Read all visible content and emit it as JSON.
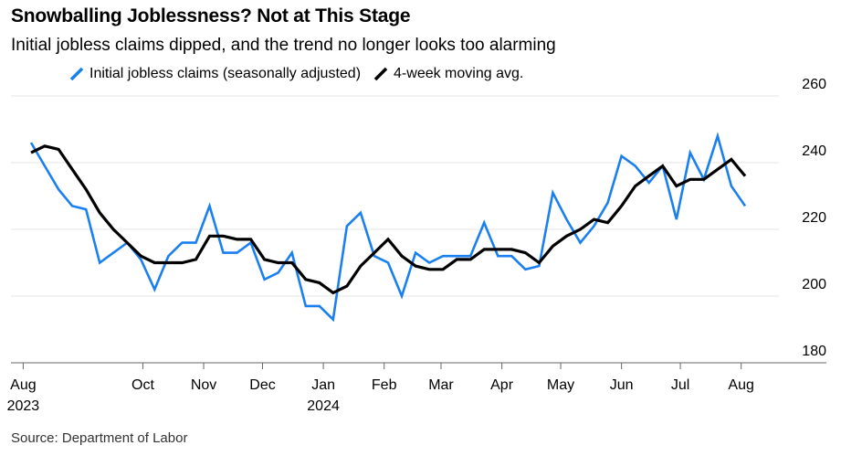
{
  "title": "Snowballing Joblessness? Not at This Stage",
  "subtitle": "Initial jobless claims dipped, and the trend no longer looks too alarming",
  "source": "Source: Department of Labor",
  "colors": {
    "claims": "#1a7ff0",
    "avg": "#000000",
    "grid": "#e6e6e6",
    "axis": "#666666"
  },
  "chart_data": {
    "type": "line",
    "title": "Snowballing Joblessness? Not at This Stage",
    "subtitle": "Initial jobless claims dipped, and the trend no longer looks too alarming",
    "ylim": [
      180,
      260
    ],
    "y_ticks": [
      180,
      200,
      220,
      240,
      260
    ],
    "y_axis_side": "right",
    "grid": true,
    "legend_position": "top",
    "x_start": "2023-08-05",
    "x_end": "2024-08-10",
    "x_ticks": [
      {
        "date": "2023-08-01",
        "label": "Aug",
        "sub": "2023"
      },
      {
        "date": "2023-10-01",
        "label": "Oct",
        "sub": ""
      },
      {
        "date": "2023-11-01",
        "label": "Nov",
        "sub": ""
      },
      {
        "date": "2023-12-01",
        "label": "Dec",
        "sub": ""
      },
      {
        "date": "2024-01-01",
        "label": "Jan",
        "sub": "2024"
      },
      {
        "date": "2024-02-01",
        "label": "Feb",
        "sub": ""
      },
      {
        "date": "2024-03-01",
        "label": "Mar",
        "sub": ""
      },
      {
        "date": "2024-04-01",
        "label": "Apr",
        "sub": ""
      },
      {
        "date": "2024-05-01",
        "label": "May",
        "sub": ""
      },
      {
        "date": "2024-06-01",
        "label": "Jun",
        "sub": ""
      },
      {
        "date": "2024-07-01",
        "label": "Jul",
        "sub": ""
      },
      {
        "date": "2024-08-01",
        "label": "Aug",
        "sub": ""
      }
    ],
    "series": [
      {
        "name": "Initial jobless claims (seasonally adjusted)",
        "color": "#1a7ff0",
        "points": [
          [
            "2023-08-05",
            246
          ],
          [
            "2023-08-12",
            239
          ],
          [
            "2023-08-19",
            232
          ],
          [
            "2023-08-26",
            227
          ],
          [
            "2023-09-02",
            226
          ],
          [
            "2023-09-09",
            210
          ],
          [
            "2023-09-16",
            213
          ],
          [
            "2023-09-23",
            216
          ],
          [
            "2023-09-30",
            211
          ],
          [
            "2023-10-07",
            202
          ],
          [
            "2023-10-14",
            212
          ],
          [
            "2023-10-21",
            216
          ],
          [
            "2023-10-28",
            216
          ],
          [
            "2023-11-04",
            227
          ],
          [
            "2023-11-11",
            213
          ],
          [
            "2023-11-18",
            213
          ],
          [
            "2023-11-25",
            216
          ],
          [
            "2023-12-02",
            205
          ],
          [
            "2023-12-09",
            207
          ],
          [
            "2023-12-16",
            213
          ],
          [
            "2023-12-23",
            197
          ],
          [
            "2023-12-30",
            197
          ],
          [
            "2024-01-06",
            193
          ],
          [
            "2024-01-13",
            221
          ],
          [
            "2024-01-20",
            225
          ],
          [
            "2024-01-27",
            212
          ],
          [
            "2024-02-03",
            210
          ],
          [
            "2024-02-10",
            200
          ],
          [
            "2024-02-17",
            213
          ],
          [
            "2024-02-24",
            210
          ],
          [
            "2024-03-02",
            212
          ],
          [
            "2024-03-09",
            212
          ],
          [
            "2024-03-16",
            212
          ],
          [
            "2024-03-23",
            222
          ],
          [
            "2024-03-30",
            212
          ],
          [
            "2024-04-06",
            212
          ],
          [
            "2024-04-13",
            208
          ],
          [
            "2024-04-20",
            209
          ],
          [
            "2024-04-27",
            231
          ],
          [
            "2024-05-04",
            223
          ],
          [
            "2024-05-11",
            216
          ],
          [
            "2024-05-18",
            221
          ],
          [
            "2024-05-25",
            228
          ],
          [
            "2024-06-01",
            242
          ],
          [
            "2024-06-08",
            239
          ],
          [
            "2024-06-15",
            234
          ],
          [
            "2024-06-22",
            239
          ],
          [
            "2024-06-29",
            223
          ],
          [
            "2024-07-06",
            243
          ],
          [
            "2024-07-13",
            235
          ],
          [
            "2024-07-20",
            248
          ],
          [
            "2024-07-27",
            233
          ],
          [
            "2024-08-03",
            227
          ]
        ]
      },
      {
        "name": "4-week moving avg.",
        "color": "#000000",
        "points": [
          [
            "2023-08-05",
            243
          ],
          [
            "2023-08-12",
            245
          ],
          [
            "2023-08-19",
            244
          ],
          [
            "2023-08-26",
            238
          ],
          [
            "2023-09-02",
            232
          ],
          [
            "2023-09-09",
            225
          ],
          [
            "2023-09-16",
            220
          ],
          [
            "2023-09-23",
            216
          ],
          [
            "2023-09-30",
            212
          ],
          [
            "2023-10-07",
            210
          ],
          [
            "2023-10-14",
            210
          ],
          [
            "2023-10-21",
            210
          ],
          [
            "2023-10-28",
            211
          ],
          [
            "2023-11-04",
            218
          ],
          [
            "2023-11-11",
            218
          ],
          [
            "2023-11-18",
            217
          ],
          [
            "2023-11-25",
            217
          ],
          [
            "2023-12-02",
            211
          ],
          [
            "2023-12-09",
            210
          ],
          [
            "2023-12-16",
            210
          ],
          [
            "2023-12-23",
            205
          ],
          [
            "2023-12-30",
            204
          ],
          [
            "2024-01-06",
            201
          ],
          [
            "2024-01-13",
            203
          ],
          [
            "2024-01-20",
            209
          ],
          [
            "2024-01-27",
            213
          ],
          [
            "2024-02-03",
            217
          ],
          [
            "2024-02-10",
            212
          ],
          [
            "2024-02-17",
            209
          ],
          [
            "2024-02-24",
            208
          ],
          [
            "2024-03-02",
            208
          ],
          [
            "2024-03-09",
            211
          ],
          [
            "2024-03-16",
            211
          ],
          [
            "2024-03-23",
            214
          ],
          [
            "2024-03-30",
            214
          ],
          [
            "2024-04-06",
            214
          ],
          [
            "2024-04-13",
            213
          ],
          [
            "2024-04-20",
            210
          ],
          [
            "2024-04-27",
            215
          ],
          [
            "2024-05-04",
            218
          ],
          [
            "2024-05-11",
            220
          ],
          [
            "2024-05-18",
            223
          ],
          [
            "2024-05-25",
            222
          ],
          [
            "2024-06-01",
            227
          ],
          [
            "2024-06-08",
            233
          ],
          [
            "2024-06-15",
            236
          ],
          [
            "2024-06-22",
            239
          ],
          [
            "2024-06-29",
            233
          ],
          [
            "2024-07-06",
            235
          ],
          [
            "2024-07-13",
            235
          ],
          [
            "2024-07-20",
            238
          ],
          [
            "2024-07-27",
            241
          ],
          [
            "2024-08-03",
            236
          ]
        ]
      }
    ]
  }
}
